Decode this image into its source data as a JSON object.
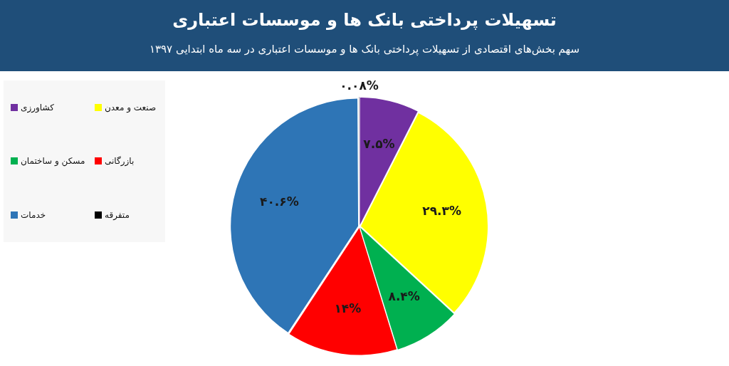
{
  "chart_data": {
    "type": "pie",
    "title": "تسهیلات پرداختی بانک ها و موسسات اعتباری",
    "subtitle": "سهم بخش‌های اقتصادی از تسهیلات پرداختی بانک ها و موسسات اعتباری در سه ماه ابتدایی ۱۳۹۷",
    "categories": [
      "کشاورزی",
      "صنعت و معدن",
      "مسکن و ساختمان",
      "بازرگانی",
      "خدمات",
      "متفرقه"
    ],
    "values": [
      7.5,
      29.3,
      8.4,
      14,
      40.6,
      0.08
    ],
    "colors": [
      "#7030a0",
      "#ffff00",
      "#00b050",
      "#ff0000",
      "#2e75b6",
      "#000000"
    ],
    "value_labels": [
      "۷.۵%",
      "۲۹.۳%",
      "۸.۴%",
      "۱۴%",
      "۴۰.۶%",
      "۰.۰۸%"
    ],
    "legend": "left"
  }
}
